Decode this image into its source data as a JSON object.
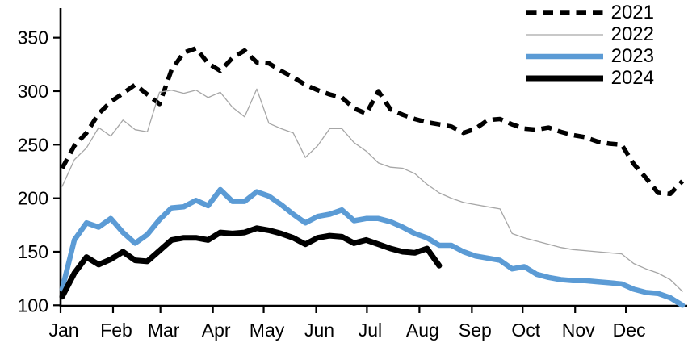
{
  "figure": {
    "background": "#ffffff",
    "axis_color": "#000000",
    "tick_label_size": 23
  },
  "legend": {
    "position": "top-right",
    "items": [
      {
        "label": "2021",
        "color": "#000000",
        "style": "dashed",
        "width": 5.5
      },
      {
        "label": "2022",
        "color": "#a6a6a6",
        "style": "solid",
        "width": 1.3
      },
      {
        "label": "2023",
        "color": "#5b9bd5",
        "style": "solid",
        "width": 6.5
      },
      {
        "label": "2024",
        "color": "#000000",
        "style": "solid",
        "width": 7
      }
    ]
  },
  "chart_data": {
    "type": "line",
    "title": "",
    "xlabel": "",
    "ylabel": "",
    "x_unit": "week-of-year",
    "grid": false,
    "legend_position": "top-right",
    "ylim": [
      100,
      360
    ],
    "y_ticks": [
      100,
      150,
      200,
      250,
      300,
      350
    ],
    "x_tick_labels": [
      "Jan",
      "Feb",
      "Mar",
      "Apr",
      "May",
      "Jun",
      "Jul",
      "Aug",
      "Sep",
      "Oct",
      "Nov",
      "Dec"
    ],
    "month_start_days": [
      0,
      31,
      59,
      90,
      120,
      151,
      181,
      212,
      243,
      273,
      304,
      334
    ],
    "days_in_year": 364,
    "series": [
      {
        "name": "2021",
        "color": "#000000",
        "style": "dashed",
        "width": 5.5,
        "values": [
          228,
          249,
          261,
          279,
          290,
          298,
          306,
          297,
          288,
          320,
          336,
          340,
          326,
          319,
          331,
          338,
          327,
          326,
          319,
          313,
          306,
          301,
          297,
          294,
          284,
          279,
          300,
          283,
          278,
          274,
          271,
          269,
          267,
          261,
          265,
          273,
          274,
          269,
          265,
          264,
          266,
          262,
          259,
          257,
          253,
          251,
          250,
          232,
          219,
          205,
          204,
          216
        ]
      },
      {
        "name": "2022",
        "color": "#a6a6a6",
        "style": "solid",
        "width": 1.3,
        "values": [
          211,
          236,
          247,
          266,
          258,
          273,
          264,
          262,
          299,
          301,
          298,
          301,
          294,
          299,
          285,
          276,
          302,
          270,
          265,
          261,
          238,
          249,
          265,
          265,
          252,
          244,
          233,
          229,
          228,
          223,
          213,
          205,
          200,
          196,
          194,
          192,
          190,
          167,
          163,
          160,
          157,
          154,
          152,
          151,
          150,
          149,
          148,
          139,
          134,
          130,
          124,
          113
        ]
      },
      {
        "name": "2023",
        "color": "#5b9bd5",
        "style": "solid",
        "width": 6.5,
        "values": [
          115,
          161,
          177,
          173,
          181,
          168,
          158,
          166,
          180,
          191,
          192,
          198,
          193,
          208,
          197,
          197,
          206,
          202,
          194,
          185,
          177,
          183,
          185,
          189,
          179,
          181,
          181,
          178,
          173,
          167,
          163,
          156,
          156,
          150,
          146,
          144,
          142,
          134,
          136,
          129,
          126,
          124,
          123,
          123,
          122,
          121,
          120,
          115,
          112,
          111,
          107,
          100
        ]
      },
      {
        "name": "2024",
        "color": "#000000",
        "style": "solid",
        "width": 7,
        "values": [
          108,
          130,
          145,
          138,
          143,
          150,
          142,
          141,
          151,
          161,
          163,
          163,
          161,
          168,
          167,
          168,
          172,
          170,
          167,
          163,
          157,
          163,
          165,
          164,
          158,
          161,
          157,
          153,
          150,
          149,
          153,
          137
        ]
      }
    ]
  }
}
